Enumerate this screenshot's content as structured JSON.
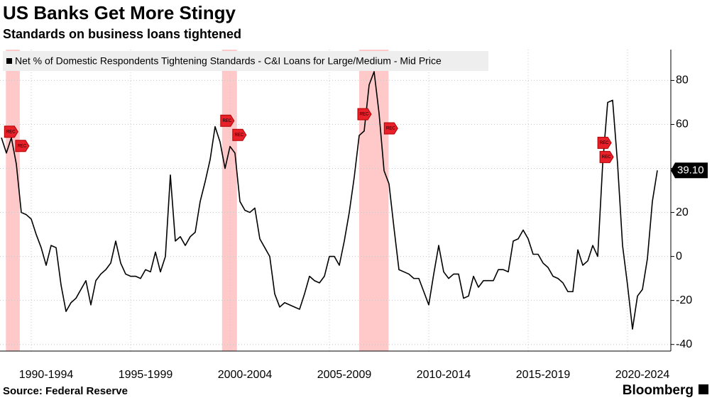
{
  "chart_data": {
    "type": "line",
    "title": "US Banks Get More Stingy",
    "subtitle": "Standards on business loans tightened",
    "source": "Source: Federal Reserve",
    "brand": "Bloomberg",
    "series": [
      {
        "name": "Net % of Domestic Respondents Tightening Standards - C&I Loans for Large/Medium - Mid Price",
        "color": "#000000",
        "values": [
          54,
          47,
          54,
          42,
          20,
          19,
          17,
          10,
          4,
          -4,
          5,
          4,
          -13,
          -25,
          -21,
          -19,
          -15,
          -11,
          -22,
          -11,
          -8,
          -6,
          -3,
          7,
          -3,
          -8,
          -9,
          -9,
          -10,
          -6,
          -7,
          2,
          -7,
          0,
          37,
          7,
          9,
          5,
          9,
          11,
          25,
          34,
          44,
          59,
          52,
          40,
          50,
          47,
          25,
          21,
          20,
          22,
          8,
          4,
          0,
          -17,
          -23,
          -21,
          -22,
          -23,
          -24,
          -17,
          -9,
          -11,
          -12,
          -9,
          0,
          0,
          -4,
          7,
          20,
          36,
          55,
          57,
          78,
          84,
          65,
          39,
          33,
          13,
          -6,
          -7,
          -8,
          -10,
          -10,
          -16,
          -22,
          -8,
          5,
          -7,
          -10,
          -8,
          -8,
          -19,
          -18,
          -9,
          -14,
          -11,
          -11,
          -11,
          -6,
          -6,
          -7,
          7,
          8,
          12,
          8,
          1,
          1,
          -3,
          -5,
          -9,
          -10,
          -12,
          -16,
          -16,
          3,
          -4,
          -2,
          5,
          0,
          42,
          70,
          71,
          42,
          5,
          -13,
          -33,
          -18,
          -15,
          -1,
          25,
          39.1
        ],
        "end_label": "39.10"
      }
    ],
    "categories": [
      null,
      null,
      null,
      null,
      null,
      null,
      null,
      null,
      null,
      "1990-1994",
      null,
      null,
      null,
      null,
      null,
      null,
      null,
      null,
      null,
      null,
      null,
      null,
      null,
      null,
      null,
      null,
      null,
      null,
      null,
      "1995-1999",
      null,
      null,
      null,
      null,
      null,
      null,
      null,
      null,
      null,
      null,
      null,
      null,
      null,
      null,
      null,
      null,
      null,
      null,
      null,
      "2000-2004",
      null,
      null,
      null,
      null,
      null,
      null,
      null,
      null,
      null,
      null,
      null,
      null,
      null,
      null,
      null,
      null,
      null,
      null,
      null,
      "2005-2009",
      null,
      null,
      null,
      null,
      null,
      null,
      null,
      null,
      null,
      null,
      null,
      null,
      null,
      null,
      null,
      null,
      null,
      null,
      null,
      "2010-2014",
      null,
      null,
      null,
      null,
      null,
      null,
      null,
      null,
      null,
      null,
      null,
      null,
      null,
      null,
      null,
      null,
      null,
      null,
      null,
      "2015-2019",
      null,
      null,
      null,
      null,
      null,
      null,
      null,
      null,
      null,
      null,
      null,
      null,
      null,
      null,
      null,
      null,
      null,
      null,
      null,
      "2020-2024",
      null,
      null,
      null
    ],
    "recessions": [
      {
        "start": 0.9,
        "end": 3.7,
        "shaded": true
      },
      {
        "start": 44.4,
        "end": 47.4,
        "shaded": true
      },
      {
        "start": 72,
        "end": 77.9,
        "shaded": true
      },
      {
        "start": 120.3,
        "end": 121.3,
        "shaded": false
      }
    ],
    "recession_label": "REC",
    "recession_color": "#ffc9c9",
    "ylim": [
      -43,
      94
    ],
    "yticks": [
      -40,
      -20,
      0,
      20,
      40,
      60,
      80
    ],
    "grid": true
  }
}
